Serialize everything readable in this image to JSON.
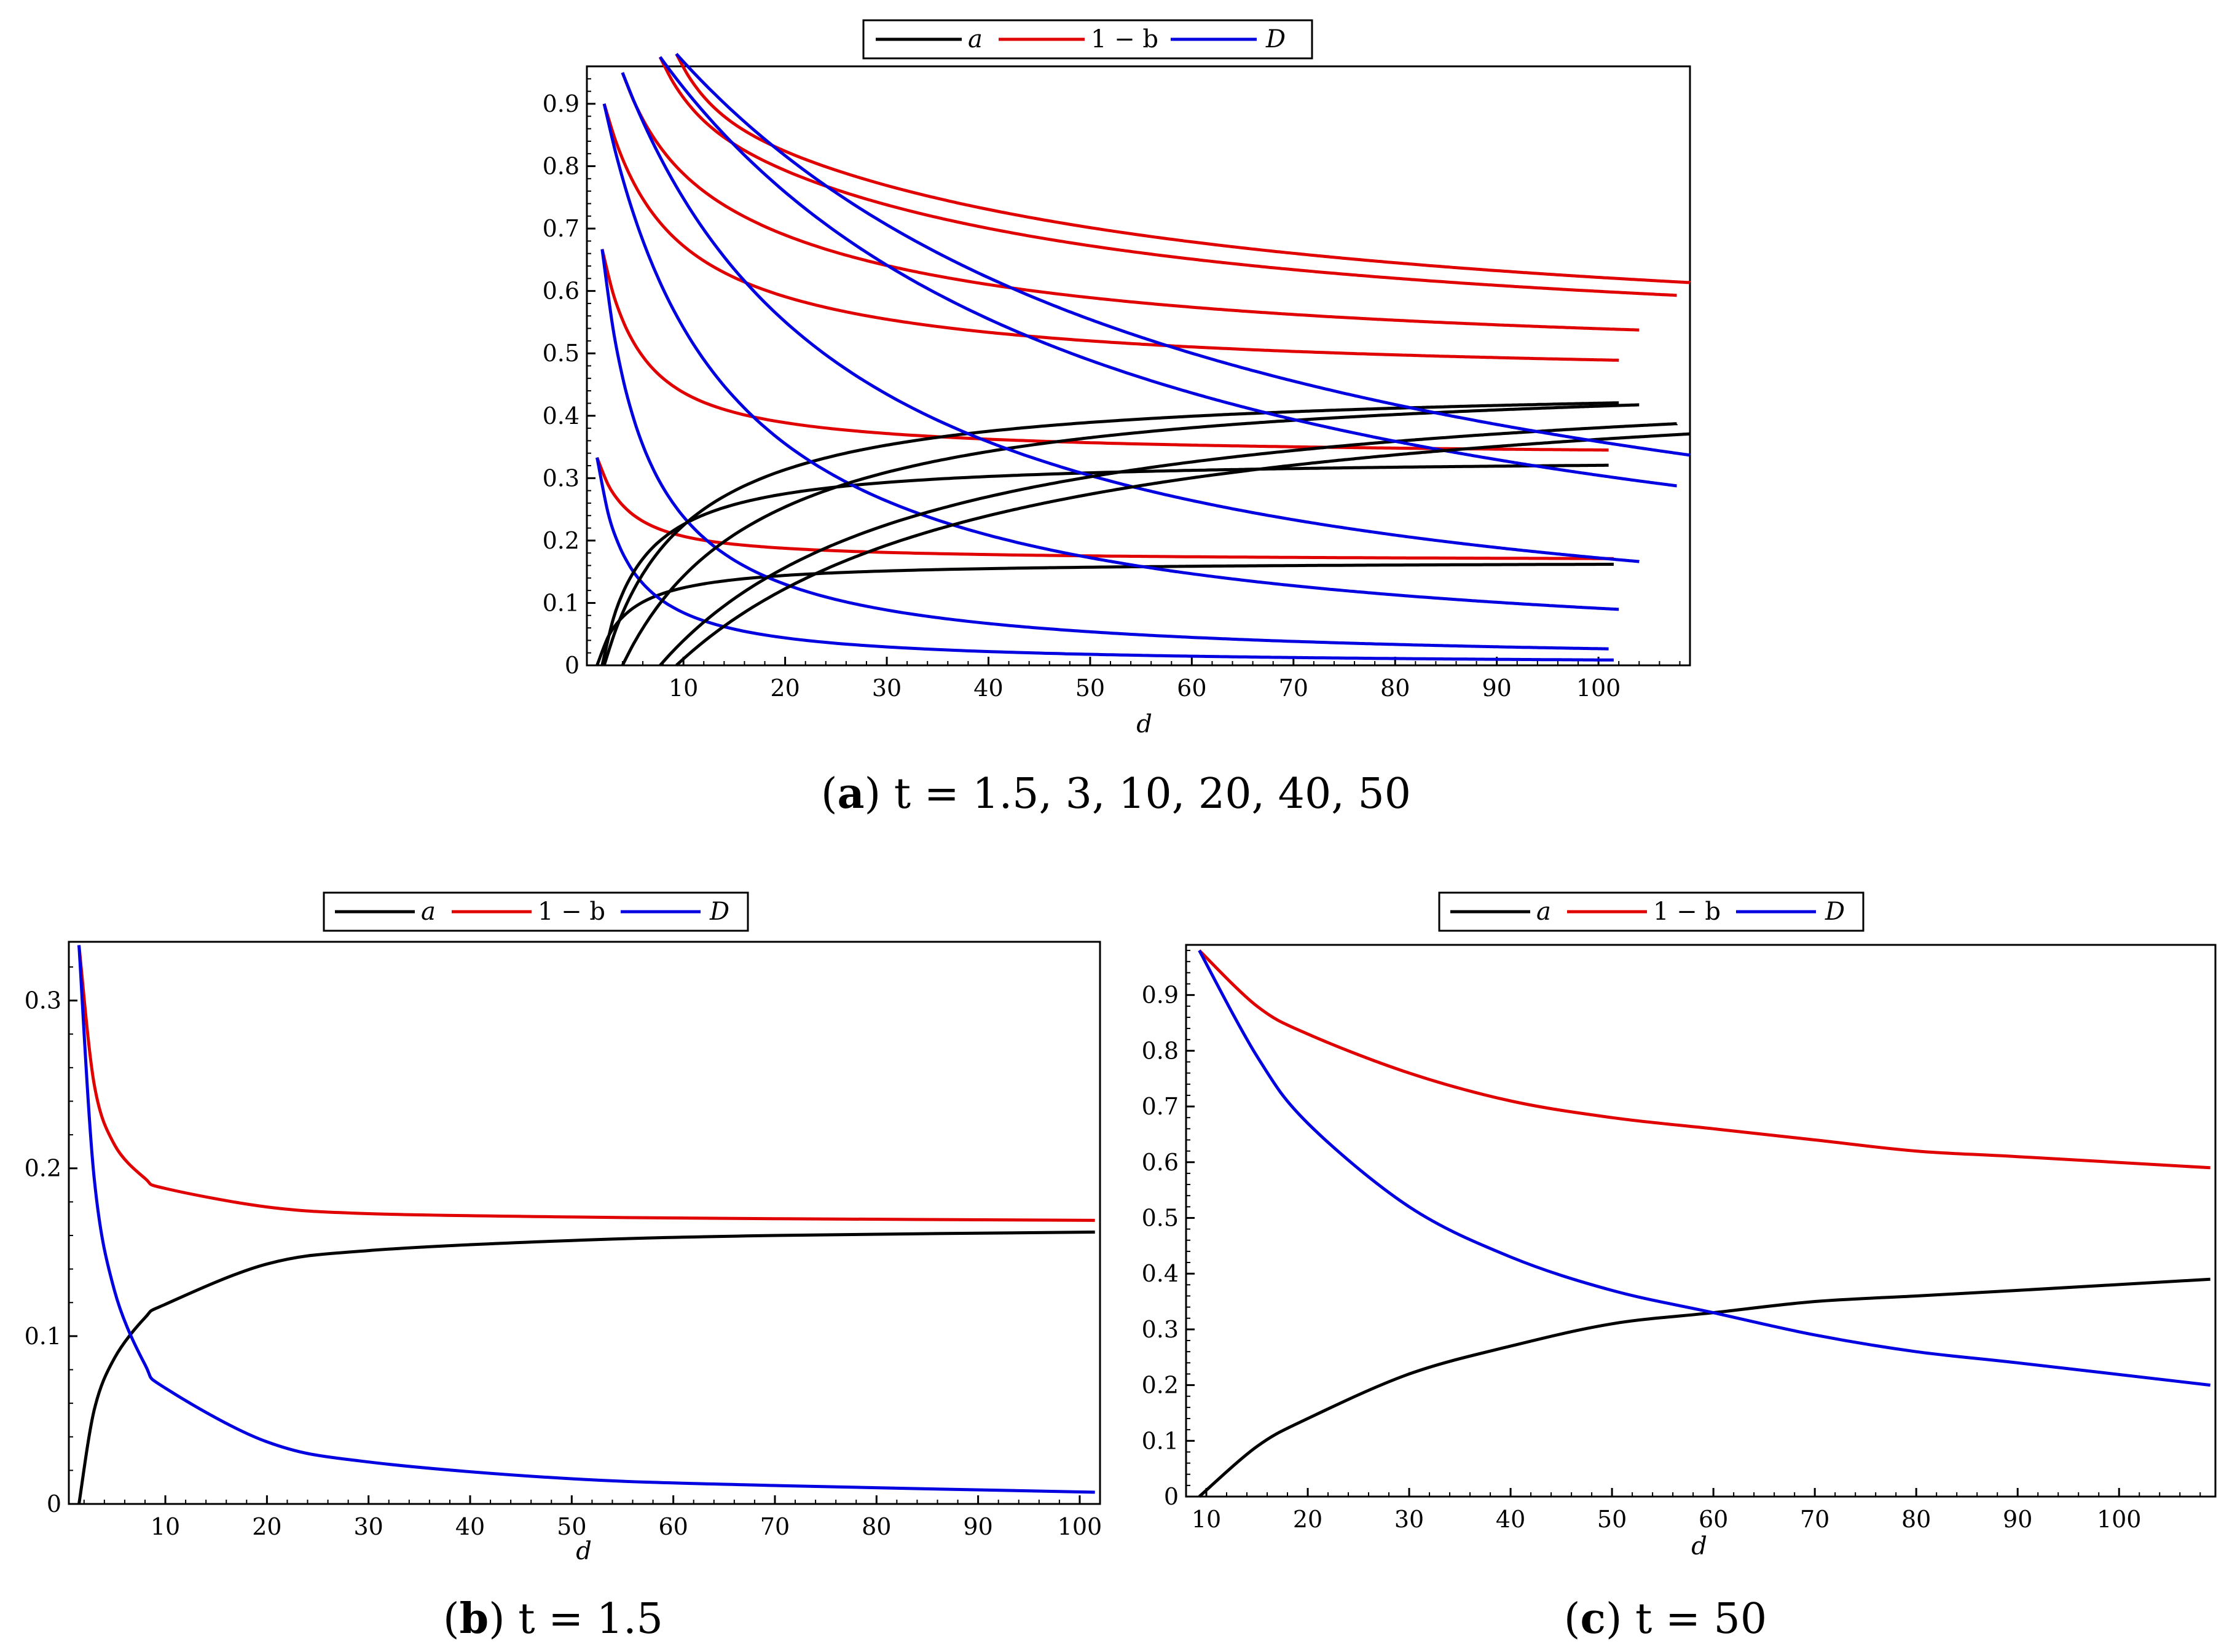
{
  "legend": {
    "a": "a",
    "one_minus_b": "1 − b",
    "D": "D"
  },
  "colors": {
    "a": "#000000",
    "one_minus_b": "#e00000",
    "D": "#0000e0"
  },
  "captions": {
    "a": {
      "letter": "a",
      "text": "t = 1.5, 3, 10, 20, 40, 50"
    },
    "b": {
      "letter": "b",
      "text": "t = 1.5"
    },
    "c": {
      "letter": "c",
      "text": "t = 50"
    }
  },
  "chart_data": [
    {
      "id": "a",
      "type": "line",
      "title": "",
      "xlabel": "d",
      "ylabel": "",
      "xlim": [
        0.5,
        109
      ],
      "ylim": [
        0,
        0.96
      ],
      "xticks": [
        10,
        20,
        30,
        40,
        50,
        60,
        70,
        80,
        90,
        100
      ],
      "yticks": [
        0,
        0.1,
        0.2,
        0.3,
        0.4,
        0.5,
        0.6,
        0.7,
        0.8,
        0.9
      ],
      "curve_params": [
        {
          "t": 1.5,
          "d_start": 1.5,
          "d_end": 101.5,
          "a_inf": 0.1667,
          "one_minus_b_start": 0.333,
          "D_start": 0.333
        },
        {
          "t": 3,
          "d_start": 2,
          "d_end": 101,
          "a_inf": 0.333,
          "one_minus_b_start": 0.667,
          "D_start": 0.667
        },
        {
          "t": 10,
          "d_start": 2.2,
          "d_end": 102,
          "a_inf": 0.4545,
          "one_minus_b_start": 0.9,
          "D_start": 0.9
        },
        {
          "t": 20,
          "d_start": 4,
          "d_end": 104,
          "a_inf": 0.476,
          "one_minus_b_start": 0.95,
          "D_start": 0.95
        },
        {
          "t": 40,
          "d_start": 7.7,
          "d_end": 107.7,
          "a_inf": 0.488,
          "one_minus_b_start": 0.975,
          "D_start": 0.975
        },
        {
          "t": 50,
          "d_start": 9.3,
          "d_end": 109,
          "a_inf": 0.49,
          "one_minus_b_start": 0.98,
          "D_start": 0.98
        }
      ],
      "series_names": [
        "a",
        "1 − b",
        "D"
      ]
    },
    {
      "id": "b",
      "type": "line",
      "xlabel": "d",
      "xlim": [
        0.5,
        102
      ],
      "ylim": [
        0,
        0.335
      ],
      "xticks": [
        10,
        20,
        30,
        40,
        50,
        60,
        70,
        80,
        90,
        100
      ],
      "yticks": [
        0,
        0.1,
        0.2,
        0.3
      ],
      "series": [
        {
          "name": "a",
          "x": [
            1.5,
            3,
            5,
            8,
            10,
            20,
            30,
            50,
            70,
            101.5
          ],
          "values": [
            0,
            0.056,
            0.087,
            0.111,
            0.119,
            0.143,
            0.151,
            0.157,
            0.16,
            0.162
          ]
        },
        {
          "name": "1 − b",
          "x": [
            1.5,
            3,
            5,
            8,
            10,
            20,
            30,
            50,
            70,
            101.5
          ],
          "values": [
            0.333,
            0.25,
            0.214,
            0.194,
            0.188,
            0.177,
            0.173,
            0.171,
            0.17,
            0.169
          ]
        },
        {
          "name": "D",
          "x": [
            1.5,
            3,
            5,
            8,
            10,
            20,
            30,
            50,
            70,
            101.5
          ],
          "values": [
            0.333,
            0.194,
            0.127,
            0.083,
            0.069,
            0.037,
            0.025,
            0.015,
            0.011,
            0.007
          ]
        }
      ]
    },
    {
      "id": "c",
      "type": "line",
      "xlabel": "d",
      "xlim": [
        8,
        109.5
      ],
      "ylim": [
        0,
        0.99
      ],
      "xticks": [
        10,
        20,
        30,
        40,
        50,
        60,
        70,
        80,
        90,
        100
      ],
      "yticks": [
        0,
        0.1,
        0.2,
        0.3,
        0.4,
        0.5,
        0.6,
        0.7,
        0.8,
        0.9
      ],
      "series": [
        {
          "name": "a",
          "x": [
            9.3,
            15,
            20,
            30,
            40,
            50,
            60,
            70,
            80,
            90,
            109
          ],
          "values": [
            0,
            0.09,
            0.14,
            0.22,
            0.27,
            0.31,
            0.33,
            0.35,
            0.36,
            0.37,
            0.39
          ]
        },
        {
          "name": "1 − b",
          "x": [
            9.3,
            15,
            20,
            30,
            40,
            50,
            60,
            70,
            80,
            90,
            109
          ],
          "values": [
            0.98,
            0.88,
            0.83,
            0.76,
            0.71,
            0.68,
            0.66,
            0.64,
            0.62,
            0.61,
            0.59
          ]
        },
        {
          "name": "D",
          "x": [
            9.3,
            15,
            20,
            30,
            40,
            50,
            60,
            70,
            80,
            90,
            109
          ],
          "values": [
            0.98,
            0.79,
            0.67,
            0.52,
            0.43,
            0.37,
            0.33,
            0.29,
            0.26,
            0.24,
            0.2
          ]
        }
      ]
    }
  ]
}
